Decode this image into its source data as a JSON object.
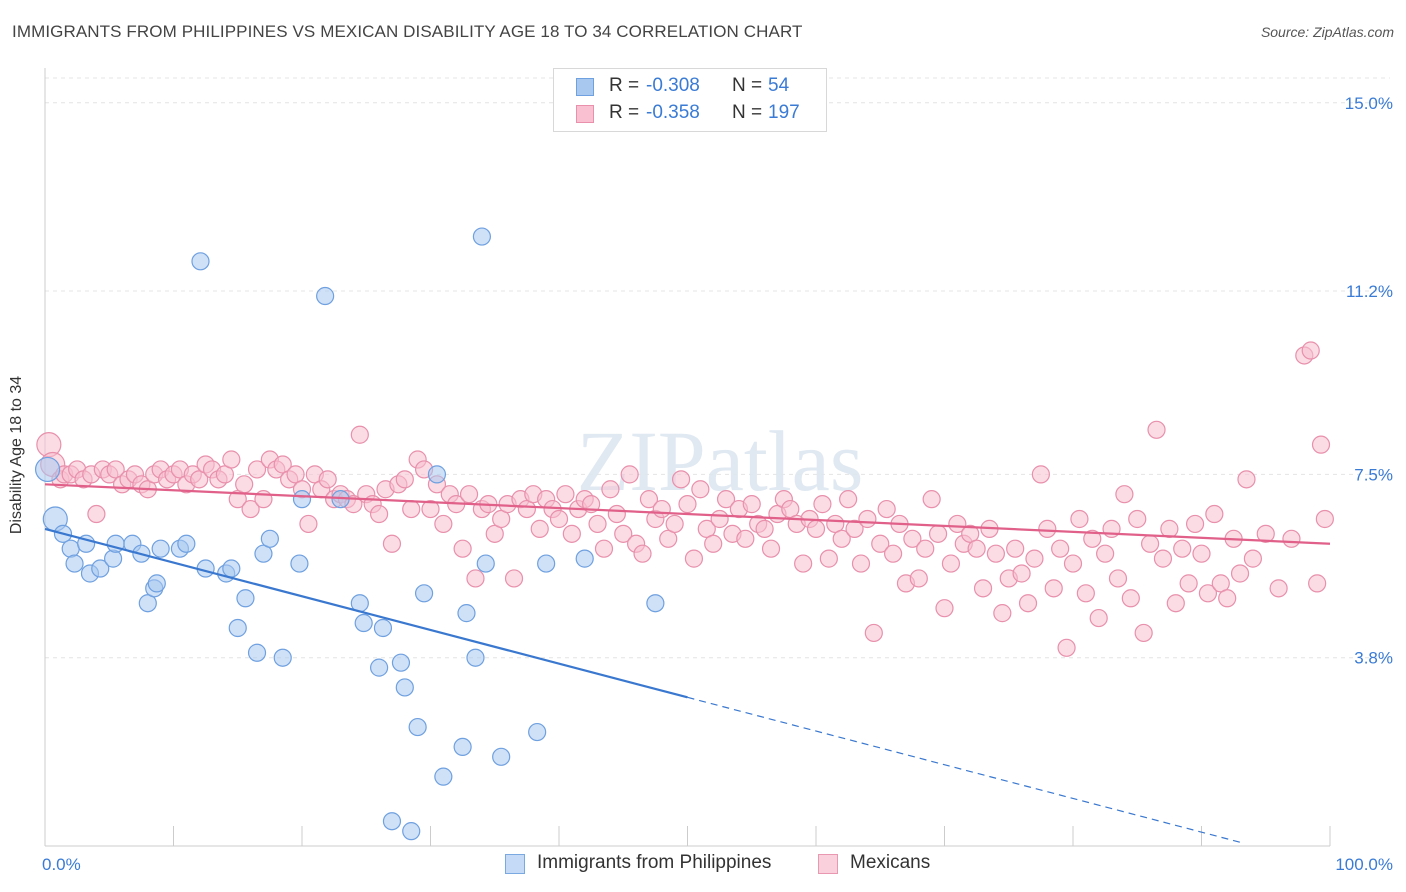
{
  "title": "IMMIGRANTS FROM PHILIPPINES VS MEXICAN DISABILITY AGE 18 TO 34 CORRELATION CHART",
  "source": "Source: ZipAtlas.com",
  "watermark": "ZIPatlas",
  "legend_top": [
    {
      "r_label": "R =",
      "r_value": "-0.308",
      "n_label": "N =",
      "n_value": "54",
      "color": "#a8c8f0",
      "border": "#6fa0e0"
    },
    {
      "r_label": "R =",
      "r_value": "-0.358",
      "n_label": "N =",
      "n_value": "197",
      "color": "#f8c0d0",
      "border": "#e890ac"
    }
  ],
  "legend_bottom": [
    {
      "label": "Immigrants from Philippines",
      "color": "#c4daf6",
      "border": "#7aa8e0"
    },
    {
      "label": "Mexicans",
      "color": "#fad0dc",
      "border": "#e898b0"
    }
  ],
  "chart_data": {
    "type": "scatter",
    "title": "IMMIGRANTS FROM PHILIPPINES VS MEXICAN DISABILITY AGE 18 TO 34 CORRELATION CHART",
    "xlabel": "",
    "ylabel": "Disability Age 18 to 34",
    "xlim": [
      0,
      100
    ],
    "ylim": [
      0,
      15.5
    ],
    "x_tick_labels": [
      {
        "value": 0,
        "label": "0.0%"
      },
      {
        "value": 100,
        "label": "100.0%"
      }
    ],
    "y_tick_labels": [
      {
        "value": 3.8,
        "label": "3.8%"
      },
      {
        "value": 7.5,
        "label": "7.5%"
      },
      {
        "value": 11.2,
        "label": "11.2%"
      },
      {
        "value": 15.0,
        "label": "15.0%"
      }
    ],
    "grid": true,
    "series": [
      {
        "name": "Immigrants from Philippines",
        "color": "#a8c8f0",
        "stroke": "#6fa0e0",
        "trend": {
          "x0": 0,
          "y0": 6.4,
          "x1": 50,
          "y1": 3.0,
          "dash_to_x": 93,
          "line_color": "#3a78d0"
        },
        "points": [
          [
            0.2,
            7.6
          ],
          [
            0.8,
            6.6
          ],
          [
            1.4,
            6.3
          ],
          [
            2.0,
            6.0
          ],
          [
            2.3,
            5.7
          ],
          [
            3.2,
            6.1
          ],
          [
            3.5,
            5.5
          ],
          [
            4.3,
            5.6
          ],
          [
            5.3,
            5.8
          ],
          [
            5.5,
            6.1
          ],
          [
            6.8,
            6.1
          ],
          [
            7.5,
            5.9
          ],
          [
            8.0,
            4.9
          ],
          [
            8.5,
            5.2
          ],
          [
            8.7,
            5.3
          ],
          [
            9.0,
            6.0
          ],
          [
            10.5,
            6.0
          ],
          [
            11.0,
            6.1
          ],
          [
            12.1,
            11.8
          ],
          [
            12.5,
            5.6
          ],
          [
            14.1,
            5.5
          ],
          [
            14.5,
            5.6
          ],
          [
            15.0,
            4.4
          ],
          [
            15.6,
            5.0
          ],
          [
            16.5,
            3.9
          ],
          [
            17.0,
            5.9
          ],
          [
            17.5,
            6.2
          ],
          [
            18.5,
            3.8
          ],
          [
            19.8,
            5.7
          ],
          [
            20.0,
            7.0
          ],
          [
            21.8,
            11.1
          ],
          [
            23.0,
            7.0
          ],
          [
            24.5,
            4.9
          ],
          [
            24.8,
            4.5
          ],
          [
            26.0,
            3.6
          ],
          [
            26.3,
            4.4
          ],
          [
            27.0,
            0.5
          ],
          [
            27.7,
            3.7
          ],
          [
            28.0,
            3.2
          ],
          [
            28.5,
            0.3
          ],
          [
            29.0,
            2.4
          ],
          [
            29.5,
            5.1
          ],
          [
            30.5,
            7.5
          ],
          [
            31.0,
            1.4
          ],
          [
            32.5,
            2.0
          ],
          [
            32.8,
            4.7
          ],
          [
            33.5,
            3.8
          ],
          [
            34.0,
            12.3
          ],
          [
            34.3,
            5.7
          ],
          [
            35.5,
            1.8
          ],
          [
            38.3,
            2.3
          ],
          [
            39.0,
            5.7
          ],
          [
            42.0,
            5.8
          ],
          [
            47.5,
            4.9
          ]
        ]
      },
      {
        "name": "Mexicans",
        "color": "#f8c0d0",
        "stroke": "#e890ac",
        "trend": {
          "x0": 0,
          "y0": 7.3,
          "x1": 100,
          "y1": 6.1,
          "line_color": "#e0608a"
        },
        "points": [
          [
            0.3,
            8.1
          ],
          [
            0.6,
            7.7
          ],
          [
            1.2,
            7.4
          ],
          [
            1.5,
            7.5
          ],
          [
            2.0,
            7.5
          ],
          [
            2.5,
            7.6
          ],
          [
            3.0,
            7.4
          ],
          [
            3.6,
            7.5
          ],
          [
            4.0,
            6.7
          ],
          [
            4.5,
            7.6
          ],
          [
            5.0,
            7.5
          ],
          [
            5.5,
            7.6
          ],
          [
            6.0,
            7.3
          ],
          [
            6.5,
            7.4
          ],
          [
            7.0,
            7.5
          ],
          [
            7.5,
            7.3
          ],
          [
            8.0,
            7.2
          ],
          [
            8.5,
            7.5
          ],
          [
            9.0,
            7.6
          ],
          [
            9.5,
            7.4
          ],
          [
            10.0,
            7.5
          ],
          [
            10.5,
            7.6
          ],
          [
            11.0,
            7.3
          ],
          [
            11.5,
            7.5
          ],
          [
            12.0,
            7.4
          ],
          [
            12.5,
            7.7
          ],
          [
            13.0,
            7.6
          ],
          [
            13.5,
            7.4
          ],
          [
            14.0,
            7.5
          ],
          [
            14.5,
            7.8
          ],
          [
            15.0,
            7.0
          ],
          [
            15.5,
            7.3
          ],
          [
            16.0,
            6.8
          ],
          [
            16.5,
            7.6
          ],
          [
            17.0,
            7.0
          ],
          [
            17.5,
            7.8
          ],
          [
            18.0,
            7.6
          ],
          [
            18.5,
            7.7
          ],
          [
            19.0,
            7.4
          ],
          [
            19.5,
            7.5
          ],
          [
            20.0,
            7.2
          ],
          [
            20.5,
            6.5
          ],
          [
            21.0,
            7.5
          ],
          [
            21.5,
            7.2
          ],
          [
            22.0,
            7.4
          ],
          [
            22.5,
            7.0
          ],
          [
            23.0,
            7.1
          ],
          [
            23.5,
            7.0
          ],
          [
            24.0,
            6.9
          ],
          [
            24.5,
            8.3
          ],
          [
            25.0,
            7.1
          ],
          [
            25.5,
            6.9
          ],
          [
            26.0,
            6.7
          ],
          [
            26.5,
            7.2
          ],
          [
            27.0,
            6.1
          ],
          [
            27.5,
            7.3
          ],
          [
            28.0,
            7.4
          ],
          [
            28.5,
            6.8
          ],
          [
            29.0,
            7.8
          ],
          [
            29.5,
            7.6
          ],
          [
            30.0,
            6.8
          ],
          [
            30.5,
            7.3
          ],
          [
            31.0,
            6.5
          ],
          [
            31.5,
            7.1
          ],
          [
            32.0,
            6.9
          ],
          [
            32.5,
            6.0
          ],
          [
            33.0,
            7.1
          ],
          [
            33.5,
            5.4
          ],
          [
            34.0,
            6.8
          ],
          [
            34.5,
            6.9
          ],
          [
            35.0,
            6.3
          ],
          [
            35.5,
            6.6
          ],
          [
            36.0,
            6.9
          ],
          [
            36.5,
            5.4
          ],
          [
            37.0,
            7.0
          ],
          [
            37.5,
            6.8
          ],
          [
            38.0,
            7.1
          ],
          [
            38.5,
            6.4
          ],
          [
            39.0,
            7.0
          ],
          [
            39.5,
            6.8
          ],
          [
            40.0,
            6.6
          ],
          [
            40.5,
            7.1
          ],
          [
            41.0,
            6.3
          ],
          [
            41.5,
            6.8
          ],
          [
            42.0,
            7.0
          ],
          [
            42.5,
            6.9
          ],
          [
            43.0,
            6.5
          ],
          [
            43.5,
            6.0
          ],
          [
            44.0,
            7.2
          ],
          [
            44.5,
            6.7
          ],
          [
            45.0,
            6.3
          ],
          [
            45.5,
            7.5
          ],
          [
            46.0,
            6.1
          ],
          [
            46.5,
            5.9
          ],
          [
            47.0,
            7.0
          ],
          [
            47.5,
            6.6
          ],
          [
            48.0,
            6.8
          ],
          [
            48.5,
            6.2
          ],
          [
            49.0,
            6.5
          ],
          [
            49.5,
            7.4
          ],
          [
            50.0,
            6.9
          ],
          [
            50.5,
            5.8
          ],
          [
            51.0,
            7.2
          ],
          [
            51.5,
            6.4
          ],
          [
            52.0,
            6.1
          ],
          [
            52.5,
            6.6
          ],
          [
            53.0,
            7.0
          ],
          [
            53.5,
            6.3
          ],
          [
            54.0,
            6.8
          ],
          [
            54.5,
            6.2
          ],
          [
            55.0,
            6.9
          ],
          [
            55.5,
            6.5
          ],
          [
            56.0,
            6.4
          ],
          [
            56.5,
            6.0
          ],
          [
            57.0,
            6.7
          ],
          [
            57.5,
            7.0
          ],
          [
            58.0,
            6.8
          ],
          [
            58.5,
            6.5
          ],
          [
            59.0,
            5.7
          ],
          [
            59.5,
            6.6
          ],
          [
            60.0,
            6.4
          ],
          [
            60.5,
            6.9
          ],
          [
            61.0,
            5.8
          ],
          [
            61.5,
            6.5
          ],
          [
            62.0,
            6.2
          ],
          [
            62.5,
            7.0
          ],
          [
            63.0,
            6.4
          ],
          [
            63.5,
            5.7
          ],
          [
            64.0,
            6.6
          ],
          [
            64.5,
            4.3
          ],
          [
            65.0,
            6.1
          ],
          [
            65.5,
            6.8
          ],
          [
            66.0,
            5.9
          ],
          [
            66.5,
            6.5
          ],
          [
            67.0,
            5.3
          ],
          [
            67.5,
            6.2
          ],
          [
            68.0,
            5.4
          ],
          [
            68.5,
            6.0
          ],
          [
            69.0,
            7.0
          ],
          [
            69.5,
            6.3
          ],
          [
            70.0,
            4.8
          ],
          [
            70.5,
            5.7
          ],
          [
            71.0,
            6.5
          ],
          [
            71.5,
            6.1
          ],
          [
            72.0,
            6.3
          ],
          [
            72.5,
            6.0
          ],
          [
            73.0,
            5.2
          ],
          [
            73.5,
            6.4
          ],
          [
            74.0,
            5.9
          ],
          [
            74.5,
            4.7
          ],
          [
            75.0,
            5.4
          ],
          [
            75.5,
            6.0
          ],
          [
            76.0,
            5.5
          ],
          [
            76.5,
            4.9
          ],
          [
            77.0,
            5.8
          ],
          [
            77.5,
            7.5
          ],
          [
            78.0,
            6.4
          ],
          [
            78.5,
            5.2
          ],
          [
            79.0,
            6.0
          ],
          [
            79.5,
            4.0
          ],
          [
            80.0,
            5.7
          ],
          [
            80.5,
            6.6
          ],
          [
            81.0,
            5.1
          ],
          [
            81.5,
            6.2
          ],
          [
            82.0,
            4.6
          ],
          [
            82.5,
            5.9
          ],
          [
            83.0,
            6.4
          ],
          [
            83.5,
            5.4
          ],
          [
            84.0,
            7.1
          ],
          [
            84.5,
            5.0
          ],
          [
            85.0,
            6.6
          ],
          [
            85.5,
            4.3
          ],
          [
            86.0,
            6.1
          ],
          [
            86.5,
            8.4
          ],
          [
            87.0,
            5.8
          ],
          [
            87.5,
            6.4
          ],
          [
            88.0,
            4.9
          ],
          [
            88.5,
            6.0
          ],
          [
            89.0,
            5.3
          ],
          [
            89.5,
            6.5
          ],
          [
            90.0,
            5.9
          ],
          [
            90.5,
            5.1
          ],
          [
            91.0,
            6.7
          ],
          [
            91.5,
            5.3
          ],
          [
            92.0,
            5.0
          ],
          [
            92.5,
            6.2
          ],
          [
            93.0,
            5.5
          ],
          [
            93.5,
            7.4
          ],
          [
            94.0,
            5.8
          ],
          [
            95.0,
            6.3
          ],
          [
            96.0,
            5.2
          ],
          [
            97.0,
            6.2
          ],
          [
            98.0,
            9.9
          ],
          [
            98.5,
            10.0
          ],
          [
            99.0,
            5.3
          ],
          [
            99.3,
            8.1
          ],
          [
            99.6,
            6.6
          ]
        ]
      }
    ]
  }
}
